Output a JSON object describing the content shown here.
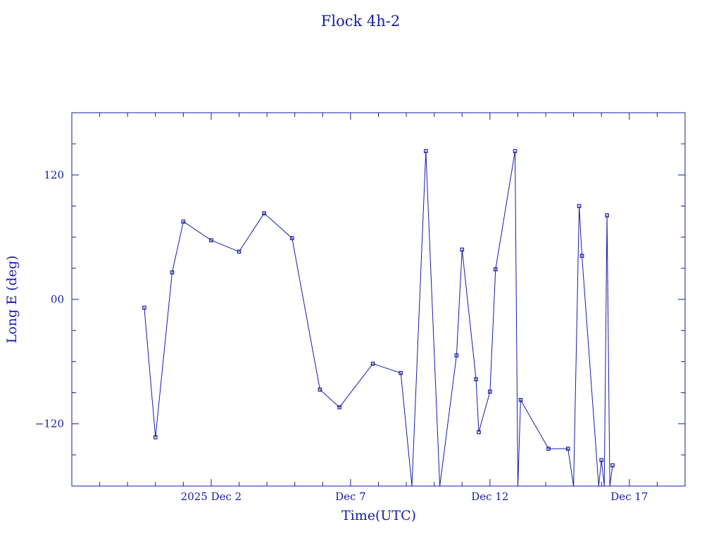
{
  "chart_data": {
    "type": "line",
    "title": "Flock 4h-2",
    "xlabel": "Time(UTC)",
    "ylabel": "Long E (deg)",
    "color": "#1a1aa8",
    "x_unit": "days since 2025-11-27 00:00 UTC",
    "xlim": [
      0,
      22
    ],
    "ylim": [
      -180,
      180
    ],
    "wrap_longitude": true,
    "x_ticks": [
      {
        "value": 5,
        "label": "2025 Dec  2"
      },
      {
        "value": 10,
        "label": "Dec  7"
      },
      {
        "value": 15,
        "label": "Dec 12"
      },
      {
        "value": 20,
        "label": "Dec 17"
      }
    ],
    "y_ticks": [
      {
        "value": 120,
        "label": "120"
      },
      {
        "value": 0,
        "label": "00"
      },
      {
        "value": -120,
        "label": "−120"
      }
    ],
    "series": [
      {
        "name": "",
        "points": [
          [
            2.6,
            -8
          ],
          [
            3.0,
            -133
          ],
          [
            3.6,
            26
          ],
          [
            4.0,
            75
          ],
          [
            5.0,
            57
          ],
          [
            6.0,
            46
          ],
          [
            6.9,
            83
          ],
          [
            7.9,
            59
          ],
          [
            8.9,
            -87
          ],
          [
            9.6,
            -104
          ],
          [
            10.8,
            -62
          ],
          [
            11.8,
            -71
          ],
          [
            12.2,
            -180
          ],
          [
            12.7,
            143
          ],
          [
            13.2,
            -180
          ],
          [
            13.8,
            -54
          ],
          [
            14.0,
            48
          ],
          [
            14.5,
            -77
          ],
          [
            14.6,
            -128
          ],
          [
            15.0,
            -89
          ],
          [
            15.2,
            29
          ],
          [
            15.9,
            143
          ],
          [
            16.0,
            -180
          ],
          [
            16.1,
            -97
          ],
          [
            17.1,
            -144
          ],
          [
            17.8,
            -144
          ],
          [
            18.0,
            -180
          ],
          [
            18.2,
            90
          ],
          [
            18.3,
            42
          ],
          [
            18.9,
            -180
          ],
          [
            19.0,
            -155
          ],
          [
            19.1,
            -180
          ],
          [
            19.2,
            81
          ],
          [
            19.3,
            -180
          ],
          [
            19.4,
            -160
          ]
        ]
      }
    ]
  }
}
